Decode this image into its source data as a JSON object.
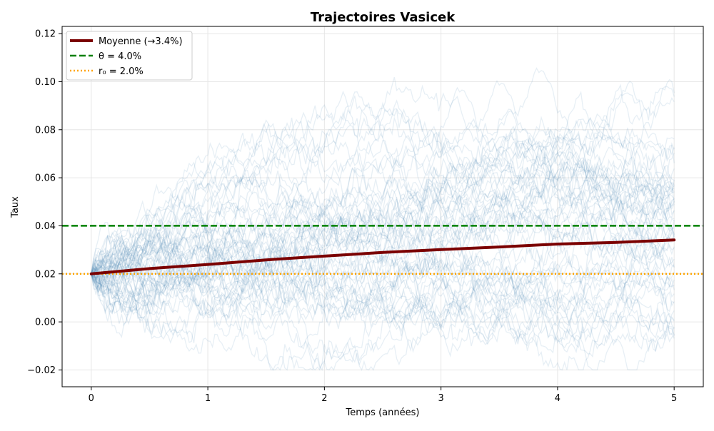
{
  "chart_data": {
    "type": "line",
    "title": "Trajectoires Vasicek",
    "xlabel": "Temps (années)",
    "ylabel": "Taux",
    "xlim": [
      -0.25,
      5.25
    ],
    "ylim": [
      -0.027,
      0.123
    ],
    "xticks": [
      0,
      1,
      2,
      3,
      4,
      5
    ],
    "xtick_labels": [
      "0",
      "1",
      "2",
      "3",
      "4",
      "5"
    ],
    "yticks": [
      -0.02,
      0.0,
      0.02,
      0.04,
      0.06,
      0.08,
      0.1,
      0.12
    ],
    "ytick_labels": [
      "−0.02",
      "0.00",
      "0.02",
      "0.04",
      "0.06",
      "0.08",
      "0.10",
      "0.12"
    ],
    "grid": true,
    "legend_placement": "top-left",
    "parameters": {
      "r0": 0.02,
      "theta": 0.04,
      "t_max": 5
    },
    "series": [
      {
        "name": "Moyenne (→3.4%)",
        "style": "solid",
        "color": "#7b0000",
        "x": [
          0,
          0.5,
          1.0,
          1.5,
          2.0,
          2.5,
          3.0,
          3.5,
          4.0,
          4.5,
          5.0
        ],
        "values": [
          0.02,
          0.0222,
          0.0239,
          0.0258,
          0.0274,
          0.0289,
          0.0301,
          0.0312,
          0.0324,
          0.0331,
          0.0341
        ]
      },
      {
        "name": "θ = 4.0%",
        "style": "dashed",
        "color": "#008000",
        "value": 0.04
      },
      {
        "name": "r₀ = 2.0%",
        "style": "dotted",
        "color": "#ffa500",
        "value": 0.02
      }
    ],
    "paths": {
      "count": 60,
      "color": "#4682b4",
      "opacity": 0.13,
      "description_values": "simulated sample trajectories starting at 0.02, spreading between about -0.02 and 0.115"
    }
  }
}
